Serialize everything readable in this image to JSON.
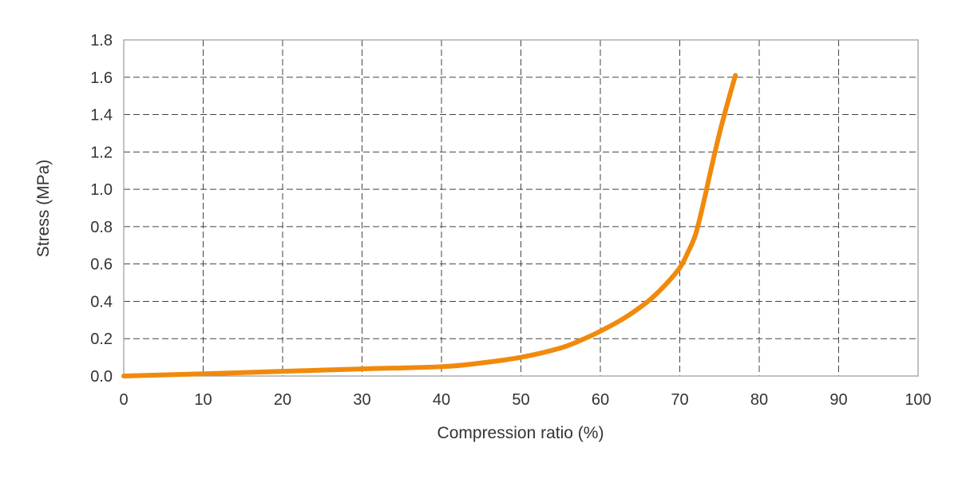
{
  "chart_data": {
    "type": "line",
    "xlabel": "Compression ratio (%)",
    "ylabel": "Stress (MPa)",
    "xlim": [
      0,
      100
    ],
    "ylim": [
      0,
      1.8
    ],
    "xticks": [
      "0",
      "10",
      "20",
      "30",
      "40",
      "50",
      "60",
      "70",
      "80",
      "90",
      "100"
    ],
    "yticks": [
      "0.0",
      "0.2",
      "0.4",
      "0.6",
      "0.8",
      "1.0",
      "1.2",
      "1.4",
      "1.6",
      "1.8"
    ],
    "grid": true,
    "legend": "none",
    "series": [
      {
        "color": "#f08a0c",
        "x": [
          0,
          10,
          20,
          30,
          40,
          45,
          50,
          55,
          58,
          60,
          63,
          66,
          68,
          70,
          71,
          72,
          73,
          74,
          75,
          76,
          77
        ],
        "y": [
          0.0,
          0.012,
          0.025,
          0.038,
          0.05,
          0.07,
          0.1,
          0.15,
          0.2,
          0.24,
          0.31,
          0.4,
          0.48,
          0.58,
          0.66,
          0.76,
          0.93,
          1.12,
          1.3,
          1.46,
          1.61
        ]
      }
    ]
  }
}
